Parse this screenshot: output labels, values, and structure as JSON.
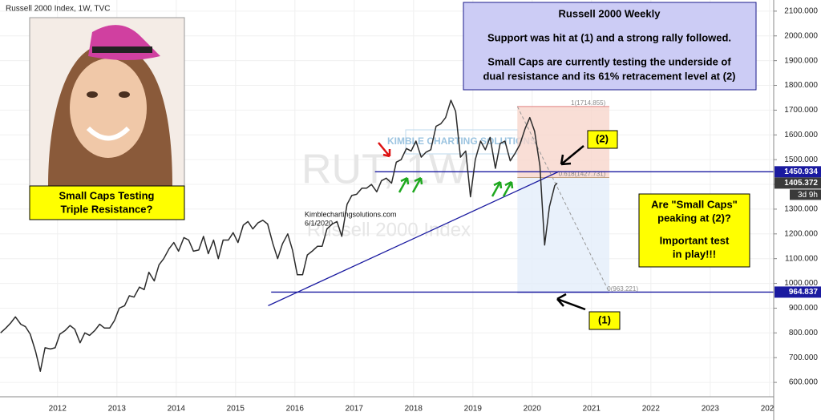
{
  "chart_data": {
    "type": "line",
    "header": "Russell 2000 Index, 1W, TVC",
    "watermark": "RUT, 1W",
    "watermark_subtitle": "Russell 2000 Index",
    "logo": "KIMBLE CHARTING SOLUTIONS",
    "site": "Kimblechartingsolutions.com",
    "date": "6/1/2020",
    "photo_caption": [
      "Small Caps Testing",
      "Triple Resistance?"
    ],
    "note_box": [
      "Russell 2000 Weekly",
      "Support was hit at (1) and a strong rally followed.",
      "Small Caps are currently testing the underside of",
      "dual resistance and its 61% retracement level at (2)"
    ],
    "question_box": [
      "Are \"Small Caps\"",
      "peaking at (2)?",
      "Important test",
      "in play!!!"
    ],
    "markers": [
      "(2)",
      "(1)"
    ],
    "x": [
      2011.04,
      2011.13,
      2011.21,
      2011.29,
      2011.38,
      2011.46,
      2011.54,
      2011.63,
      2011.71,
      2011.79,
      2011.88,
      2011.96,
      2012.04,
      2012.13,
      2012.21,
      2012.29,
      2012.38,
      2012.46,
      2012.54,
      2012.63,
      2012.71,
      2012.79,
      2012.88,
      2012.96,
      2013.04,
      2013.13,
      2013.21,
      2013.29,
      2013.38,
      2013.46,
      2013.54,
      2013.63,
      2013.71,
      2013.79,
      2013.88,
      2013.96,
      2014.04,
      2014.13,
      2014.21,
      2014.29,
      2014.38,
      2014.46,
      2014.54,
      2014.63,
      2014.71,
      2014.79,
      2014.88,
      2014.96,
      2015.04,
      2015.13,
      2015.21,
      2015.29,
      2015.38,
      2015.46,
      2015.54,
      2015.63,
      2015.71,
      2015.79,
      2015.88,
      2015.96,
      2016.04,
      2016.13,
      2016.21,
      2016.29,
      2016.38,
      2016.46,
      2016.54,
      2016.63,
      2016.71,
      2016.79,
      2016.88,
      2016.96,
      2017.04,
      2017.13,
      2017.21,
      2017.29,
      2017.38,
      2017.46,
      2017.54,
      2017.63,
      2017.71,
      2017.79,
      2017.88,
      2017.96,
      2018.04,
      2018.13,
      2018.21,
      2018.29,
      2018.38,
      2018.46,
      2018.54,
      2018.63,
      2018.71,
      2018.79,
      2018.88,
      2018.96,
      2019.04,
      2019.13,
      2019.21,
      2019.29,
      2019.38,
      2019.46,
      2019.54,
      2019.63,
      2019.71,
      2019.79,
      2019.88,
      2019.96,
      2020.04,
      2020.13,
      2020.21,
      2020.29,
      2020.38,
      2020.42
    ],
    "series": [
      {
        "name": "Russell 2000",
        "color": "#2b2b2b",
        "values": [
          800,
          820,
          840,
          865,
          835,
          825,
          795,
          725,
          645,
          740,
          735,
          740,
          795,
          810,
          830,
          815,
          760,
          800,
          790,
          810,
          835,
          820,
          820,
          850,
          900,
          910,
          950,
          945,
          985,
          975,
          1045,
          1010,
          1075,
          1100,
          1140,
          1165,
          1130,
          1185,
          1175,
          1130,
          1135,
          1190,
          1120,
          1175,
          1100,
          1175,
          1175,
          1205,
          1165,
          1235,
          1250,
          1220,
          1245,
          1255,
          1240,
          1160,
          1100,
          1160,
          1200,
          1135,
          1035,
          1035,
          1115,
          1130,
          1150,
          1150,
          1220,
          1240,
          1250,
          1190,
          1320,
          1355,
          1360,
          1385,
          1385,
          1400,
          1370,
          1415,
          1425,
          1405,
          1490,
          1500,
          1545,
          1535,
          1575,
          1510,
          1530,
          1540,
          1635,
          1645,
          1670,
          1740,
          1695,
          1510,
          1535,
          1350,
          1500,
          1575,
          1540,
          1590,
          1465,
          1565,
          1575,
          1495,
          1525,
          1560,
          1625,
          1670,
          1615,
          1475,
          1155,
          1310,
          1395,
          1405.372
        ]
      }
    ],
    "xlim": [
      2011.03,
      2024.07
    ],
    "xticks": [
      2012,
      2013,
      2014,
      2015,
      2016,
      2017,
      2018,
      2019,
      2020,
      2021,
      2022,
      2023,
      2024
    ],
    "ylim": [
      542,
      2145
    ],
    "yticks": [
      {
        "value": 600,
        "label": "600.000"
      },
      {
        "value": 700,
        "label": "700.000"
      },
      {
        "value": 800,
        "label": "800.000"
      },
      {
        "value": 900,
        "label": "900.000"
      },
      {
        "value": 1000,
        "label": "1000.000"
      },
      {
        "value": 1100,
        "label": "1100.000"
      },
      {
        "value": 1200,
        "label": "1200.000"
      },
      {
        "value": 1300,
        "label": "1300.000"
      },
      {
        "value": 1400,
        "label": "1400.000"
      },
      {
        "value": 1500,
        "label": "1500.000"
      },
      {
        "value": 1600,
        "label": "1600.000"
      },
      {
        "value": 1700,
        "label": "1700.000"
      },
      {
        "value": 1800,
        "label": "1800.000"
      },
      {
        "value": 1900,
        "label": "1900.000"
      },
      {
        "value": 2000,
        "label": "2000.000"
      },
      {
        "value": 2100,
        "label": "2100.000"
      }
    ],
    "horizontal_lines": [
      1450.934,
      964.837
    ],
    "last_price": 1405.372,
    "countdown": "3d 9h",
    "trendline": {
      "x": [
        2015.55,
        2020.45
      ],
      "y": [
        910,
        1452
      ]
    },
    "fib_range": [
      2019.75,
      2021.3
    ],
    "fib_levels": [
      {
        "value": 1714.855,
        "label": "1(1714.855)"
      },
      {
        "value": 1427.731,
        "label": "0.618(1427.731)"
      },
      {
        "value": 963.221,
        "label": "0(963.221)"
      }
    ]
  }
}
